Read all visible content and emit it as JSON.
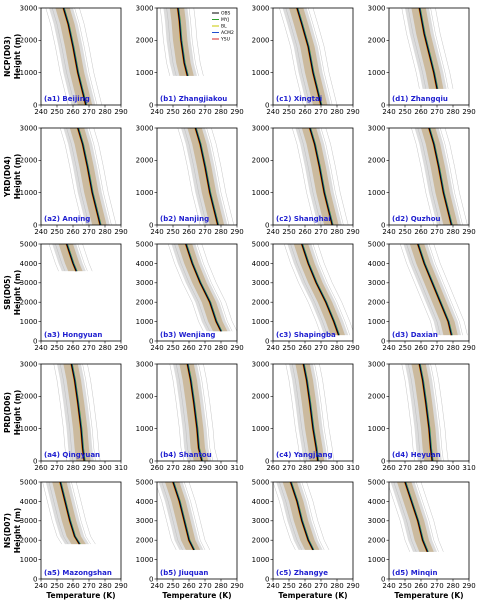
{
  "figure": {
    "x_axis_label": "Temperature (K)"
  },
  "colors": {
    "OBS": "#000000",
    "MYJ": "#2ca02c",
    "BL": "#c8c800",
    "ACM2": "#1f4fd0",
    "YSU": "#d62728",
    "ensemble_band": "#c8b493",
    "shading": "#d0d0d0",
    "label": "#1f1fd0"
  },
  "chart_data": {
    "type": "line",
    "legend": {
      "placement": "top-right",
      "panel": "b1",
      "entries": [
        "OBS",
        "MYJ",
        "BL",
        "ACM2",
        "YSU"
      ]
    },
    "rows": [
      {
        "region_label": "NCP(D03)",
        "ylabel": "Height (m)",
        "ylim": [
          0,
          3000
        ],
        "yticks": [
          0,
          1000,
          2000,
          3000
        ],
        "xlim": [
          240,
          290
        ],
        "xticks": [
          240,
          250,
          260,
          270,
          280,
          290
        ],
        "panels": [
          {
            "id": "a1",
            "label": "(a1) Beijing",
            "obs": [
              [
                268,
                0
              ],
              [
                266,
                400
              ],
              [
                263,
                1000
              ],
              [
                260,
                1800
              ],
              [
                257,
                2500
              ],
              [
                254,
                3000
              ]
            ],
            "bottom": 0
          },
          {
            "id": "b1",
            "label": "(b1) Zhangjiakou",
            "obs": [
              [
                259,
                900
              ],
              [
                257,
                1300
              ],
              [
                255,
                2000
              ],
              [
                254,
                2600
              ],
              [
                253,
                3000
              ]
            ],
            "bottom": 900
          },
          {
            "id": "c1",
            "label": "(c1) Xingtai",
            "obs": [
              [
                270,
                0
              ],
              [
                268,
                400
              ],
              [
                265,
                1000
              ],
              [
                262,
                1800
              ],
              [
                258,
                2500
              ],
              [
                255,
                3000
              ]
            ],
            "bottom": 0
          },
          {
            "id": "d1",
            "label": "(d1) Zhangqiu",
            "obs": [
              [
                270,
                500
              ],
              [
                268,
                1000
              ],
              [
                265,
                1600
              ],
              [
                262,
                2200
              ],
              [
                259,
                3000
              ]
            ],
            "bottom": 500
          }
        ]
      },
      {
        "region_label": "YRD(D04)",
        "ylabel": "Height (m)",
        "ylim": [
          0,
          3000
        ],
        "yticks": [
          0,
          1000,
          2000,
          3000
        ],
        "xlim": [
          240,
          290
        ],
        "xticks": [
          240,
          250,
          260,
          270,
          280,
          290
        ],
        "panels": [
          {
            "id": "a2",
            "label": "(a2) Anqing",
            "obs": [
              [
                277,
                0
              ],
              [
                275,
                400
              ],
              [
                272,
                1000
              ],
              [
                269,
                1800
              ],
              [
                266,
                2500
              ],
              [
                263,
                3000
              ]
            ],
            "bottom": 0
          },
          {
            "id": "b2",
            "label": "(b2) Nanjing",
            "obs": [
              [
                278,
                0
              ],
              [
                276,
                400
              ],
              [
                273,
                1000
              ],
              [
                270,
                1800
              ],
              [
                267,
                2500
              ],
              [
                264,
                3000
              ]
            ],
            "bottom": 0
          },
          {
            "id": "c2",
            "label": "(c2) Shanghai",
            "obs": [
              [
                277,
                0
              ],
              [
                275,
                400
              ],
              [
                272,
                1000
              ],
              [
                269,
                1800
              ],
              [
                266,
                2500
              ],
              [
                263,
                3000
              ]
            ],
            "bottom": 0
          },
          {
            "id": "d2",
            "label": "(d2) Quzhou",
            "obs": [
              [
                279,
                0
              ],
              [
                277,
                400
              ],
              [
                274,
                1000
              ],
              [
                271,
                1800
              ],
              [
                268,
                2500
              ],
              [
                265,
                3000
              ]
            ],
            "bottom": 0
          }
        ]
      },
      {
        "region_label": "SB(D05)",
        "ylabel": "Height (m)",
        "ylim": [
          0,
          5000
        ],
        "yticks": [
          0,
          1000,
          2000,
          3000,
          4000,
          5000
        ],
        "xlim": [
          240,
          290
        ],
        "xticks": [
          240,
          250,
          260,
          270,
          280,
          290
        ],
        "panels": [
          {
            "id": "a3",
            "label": "(a3) Hongyuan",
            "obs": [
              [
                262,
                3600
              ],
              [
                260,
                4000
              ],
              [
                258,
                4500
              ],
              [
                256,
                5000
              ]
            ],
            "bottom": 3600
          },
          {
            "id": "b3",
            "label": "(b3) Wenjiang",
            "obs": [
              [
                280,
                500
              ],
              [
                277,
                1000
              ],
              [
                273,
                2000
              ],
              [
                267,
                3000
              ],
              [
                262,
                4000
              ],
              [
                258,
                5000
              ]
            ],
            "bottom": 500
          },
          {
            "id": "c3",
            "label": "(c3) Shapingba",
            "obs": [
              [
                281,
                300
              ],
              [
                278,
                1000
              ],
              [
                273,
                2000
              ],
              [
                267,
                3000
              ],
              [
                262,
                4000
              ],
              [
                258,
                5000
              ]
            ],
            "bottom": 300
          },
          {
            "id": "d3",
            "label": "(d3) Daxian",
            "obs": [
              [
                279,
                300
              ],
              [
                277,
                1000
              ],
              [
                272,
                2000
              ],
              [
                267,
                3000
              ],
              [
                262,
                4000
              ],
              [
                258,
                5000
              ]
            ],
            "bottom": 300
          }
        ]
      },
      {
        "region_label": "PRD(D06)",
        "ylabel": "Height (m)",
        "ylim": [
          0,
          3000
        ],
        "yticks": [
          0,
          1000,
          2000,
          3000
        ],
        "xlim": [
          260,
          310
        ],
        "xticks": [
          260,
          270,
          280,
          290,
          300,
          310
        ],
        "panels": [
          {
            "id": "a4",
            "label": "(a4) Qingyuan",
            "obs": [
              [
                287,
                0
              ],
              [
                286,
                400
              ],
              [
                285,
                1000
              ],
              [
                283,
                1800
              ],
              [
                281,
                2500
              ],
              [
                279,
                3000
              ]
            ],
            "bottom": 0
          },
          {
            "id": "b4",
            "label": "(b4) Shantou",
            "obs": [
              [
                288,
                0
              ],
              [
                286,
                400
              ],
              [
                285,
                1000
              ],
              [
                283,
                1800
              ],
              [
                281,
                2500
              ],
              [
                279,
                3000
              ]
            ],
            "bottom": 0
          },
          {
            "id": "c4",
            "label": "(c4) Yangjiang",
            "obs": [
              [
                288,
                0
              ],
              [
                287,
                400
              ],
              [
                285,
                1000
              ],
              [
                283,
                1800
              ],
              [
                281,
                2500
              ],
              [
                279,
                3000
              ]
            ],
            "bottom": 0
          },
          {
            "id": "d4",
            "label": "(d4) Heyuan",
            "obs": [
              [
                287,
                0
              ],
              [
                286,
                400
              ],
              [
                285,
                1000
              ],
              [
                283,
                1800
              ],
              [
                281,
                2500
              ],
              [
                279,
                3000
              ]
            ],
            "bottom": 0
          }
        ]
      },
      {
        "region_label": "NS(D07)",
        "ylabel": "Height (m)",
        "ylim": [
          0,
          5000
        ],
        "yticks": [
          0,
          1000,
          2000,
          3000,
          4000,
          5000
        ],
        "xlim": [
          240,
          290
        ],
        "xticks": [
          240,
          250,
          260,
          270,
          280,
          290
        ],
        "panels": [
          {
            "id": "a5",
            "label": "(a5) Mazongshan",
            "obs": [
              [
                264,
                1800
              ],
              [
                261,
                2200
              ],
              [
                258,
                3000
              ],
              [
                255,
                4000
              ],
              [
                252,
                5000
              ]
            ],
            "bottom": 1800
          },
          {
            "id": "b5",
            "label": "(b5) Jiuquan",
            "obs": [
              [
                263,
                1500
              ],
              [
                260,
                2000
              ],
              [
                257,
                3000
              ],
              [
                254,
                4000
              ],
              [
                250,
                5000
              ]
            ],
            "bottom": 1500
          },
          {
            "id": "c5",
            "label": "(c5) Zhangye",
            "obs": [
              [
                265,
                1500
              ],
              [
                262,
                2000
              ],
              [
                258,
                3000
              ],
              [
                255,
                4000
              ],
              [
                251,
                5000
              ]
            ],
            "bottom": 1500
          },
          {
            "id": "d5",
            "label": "(d5) Minqin",
            "obs": [
              [
                264,
                1400
              ],
              [
                261,
                2000
              ],
              [
                258,
                3000
              ],
              [
                254,
                4000
              ],
              [
                250,
                5000
              ]
            ],
            "bottom": 1400
          }
        ]
      }
    ]
  }
}
